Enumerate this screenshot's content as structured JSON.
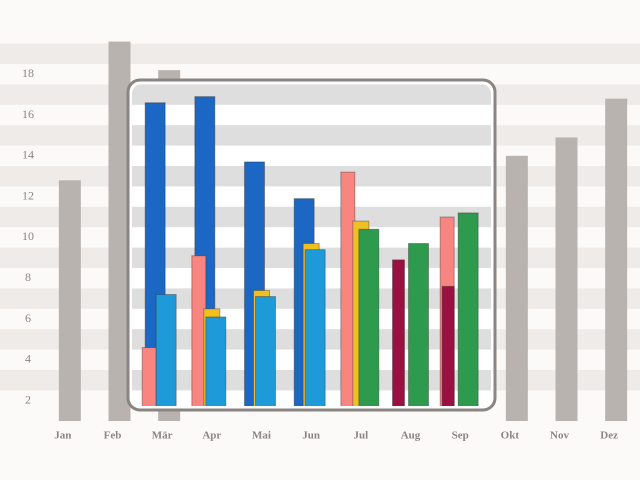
{
  "chart_data": {
    "type": "bar",
    "categories": [
      "Jan",
      "Feb",
      "Mär",
      "Apr",
      "Mai",
      "Jun",
      "Jul",
      "Aug",
      "Sep",
      "Okt",
      "Nov",
      "Dez"
    ],
    "ylim": [
      1,
      21
    ],
    "yticks": [
      2,
      4,
      6,
      8,
      10,
      12,
      14,
      16,
      18
    ],
    "grid": true,
    "series": [
      {
        "color": "#b9b3af",
        "values": [
          12.8,
          19.6,
          18.2,
          null,
          null,
          null,
          null,
          null,
          null,
          14,
          14.9,
          16.8
        ]
      },
      {
        "color": "#1c67c4",
        "values": [
          null,
          null,
          16.6,
          16.9,
          13.7,
          11.9,
          null,
          null,
          null,
          null,
          null,
          null
        ]
      },
      {
        "color": "#f98580",
        "values": [
          null,
          null,
          4.6,
          9.1,
          null,
          null,
          13.2,
          null,
          11.0,
          null,
          null,
          null
        ]
      },
      {
        "color": "#f0c020",
        "values": [
          null,
          null,
          null,
          6.5,
          7.4,
          9.7,
          10.8,
          null,
          null,
          null,
          null,
          null
        ]
      },
      {
        "color": "#1e9ad8",
        "values": [
          null,
          null,
          7.2,
          6.1,
          7.1,
          9.4,
          null,
          null,
          null,
          null,
          null,
          null
        ]
      },
      {
        "color": "#2e9a4e",
        "values": [
          null,
          null,
          null,
          null,
          null,
          null,
          10.4,
          9.7,
          11.2,
          null,
          null,
          null
        ]
      },
      {
        "color": "#9a1040",
        "values": [
          null,
          null,
          null,
          null,
          null,
          null,
          null,
          8.9,
          7.6,
          null,
          null,
          null
        ]
      }
    ]
  }
}
